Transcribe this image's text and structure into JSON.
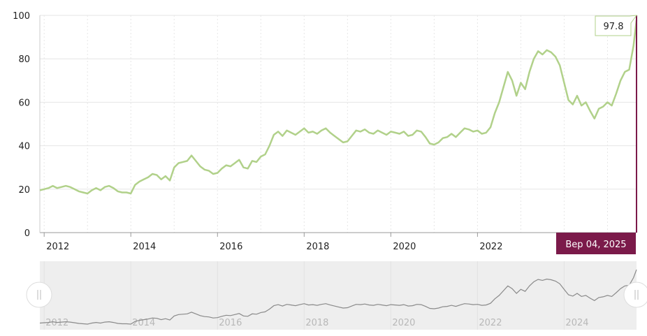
{
  "chart_data": {
    "type": "line",
    "x_unit": "year",
    "ylim": [
      0,
      100
    ],
    "yticks": [
      "0",
      "20",
      "40",
      "60",
      "80",
      "100"
    ],
    "xlim": [
      2011.9,
      2025.67
    ],
    "xtick_values": [
      2012,
      2014,
      2016,
      2018,
      2020,
      2022
    ],
    "xticks": [
      "2012",
      "2014",
      "2016",
      "2018",
      "2020",
      "2022"
    ],
    "navigator_tick_values": [
      2012,
      2014,
      2016,
      2018,
      2020,
      2022,
      2024
    ],
    "navigator_ticks": [
      "2012",
      "2014",
      "2016",
      "2018",
      "2020",
      "2022",
      "2024"
    ],
    "grid": true,
    "line_color": "#b1d18a",
    "navigator_line_color": "#8a8a8a",
    "crosshair_color": "#7b1a4a",
    "last_value_label": "97.8",
    "current_date_label": "Bep 04, 2025",
    "series": [
      {
        "x": [
          2011.9,
          2012.0,
          2012.1,
          2012.2,
          2012.3,
          2012.4,
          2012.5,
          2012.6,
          2012.7,
          2012.8,
          2012.9,
          2013.0,
          2013.1,
          2013.2,
          2013.3,
          2013.4,
          2013.5,
          2013.6,
          2013.7,
          2013.8,
          2013.9,
          2014.0,
          2014.1,
          2014.2,
          2014.3,
          2014.4,
          2014.5,
          2014.6,
          2014.7,
          2014.8,
          2014.9,
          2015.0,
          2015.1,
          2015.2,
          2015.3,
          2015.4,
          2015.5,
          2015.6,
          2015.7,
          2015.8,
          2015.9,
          2016.0,
          2016.1,
          2016.2,
          2016.3,
          2016.4,
          2016.5,
          2016.6,
          2016.7,
          2016.8,
          2016.9,
          2017.0,
          2017.1,
          2017.2,
          2017.3,
          2017.4,
          2017.5,
          2017.6,
          2017.7,
          2017.8,
          2017.9,
          2018.0,
          2018.1,
          2018.2,
          2018.3,
          2018.4,
          2018.5,
          2018.6,
          2018.7,
          2018.8,
          2018.9,
          2019.0,
          2019.1,
          2019.2,
          2019.3,
          2019.4,
          2019.5,
          2019.6,
          2019.7,
          2019.8,
          2019.9,
          2020.0,
          2020.1,
          2020.2,
          2020.3,
          2020.4,
          2020.5,
          2020.6,
          2020.7,
          2020.8,
          2020.9,
          2021.0,
          2021.1,
          2021.2,
          2021.3,
          2021.4,
          2021.5,
          2021.6,
          2021.7,
          2021.8,
          2021.9,
          2022.0,
          2022.1,
          2022.2,
          2022.3,
          2022.4,
          2022.5,
          2022.6,
          2022.7,
          2022.8,
          2022.9,
          2023.0,
          2023.1,
          2023.2,
          2023.3,
          2023.4,
          2023.5,
          2023.6,
          2023.7,
          2023.8,
          2023.9,
          2024.0,
          2024.1,
          2024.2,
          2024.3,
          2024.4,
          2024.5,
          2024.6,
          2024.7,
          2024.8,
          2024.9,
          2025.0,
          2025.1,
          2025.2,
          2025.3,
          2025.4,
          2025.5,
          2025.6,
          2025.67
        ],
        "values": [
          19.5,
          20.0,
          20.5,
          21.5,
          20.5,
          21.0,
          21.5,
          21.0,
          20.0,
          19.0,
          18.5,
          18.0,
          19.5,
          20.5,
          19.5,
          21.0,
          21.5,
          20.5,
          19.0,
          18.5,
          18.5,
          18.0,
          22.0,
          23.5,
          24.5,
          25.5,
          27.0,
          26.5,
          24.5,
          26.0,
          24.0,
          30.0,
          32.0,
          32.5,
          33.0,
          35.5,
          33.0,
          30.5,
          29.0,
          28.5,
          27.0,
          27.5,
          29.5,
          31.0,
          30.5,
          32.0,
          33.5,
          30.0,
          29.5,
          33.0,
          32.5,
          35.0,
          36.0,
          40.0,
          45.0,
          46.5,
          44.5,
          47.0,
          46.0,
          45.0,
          46.5,
          48.0,
          46.0,
          46.5,
          45.5,
          47.0,
          48.0,
          46.0,
          44.5,
          43.0,
          41.5,
          42.0,
          44.5,
          47.0,
          46.5,
          47.5,
          46.0,
          45.5,
          47.0,
          46.0,
          45.0,
          46.5,
          46.0,
          45.5,
          46.5,
          44.5,
          45.0,
          47.0,
          46.5,
          44.0,
          41.0,
          40.5,
          41.5,
          43.5,
          44.0,
          45.5,
          44.0,
          46.0,
          48.0,
          47.5,
          46.5,
          47.0,
          45.5,
          46.0,
          48.5,
          55.0,
          60.0,
          67.0,
          74.0,
          70.0,
          63.0,
          69.0,
          66.0,
          74.0,
          80.0,
          83.5,
          82.0,
          84.0,
          83.0,
          81.0,
          77.0,
          69.0,
          61.0,
          59.0,
          63.0,
          58.5,
          60.0,
          56.0,
          52.5,
          57.0,
          58.0,
          60.0,
          58.5,
          64.0,
          70.0,
          74.0,
          75.0,
          86.0,
          97.8
        ]
      }
    ]
  }
}
